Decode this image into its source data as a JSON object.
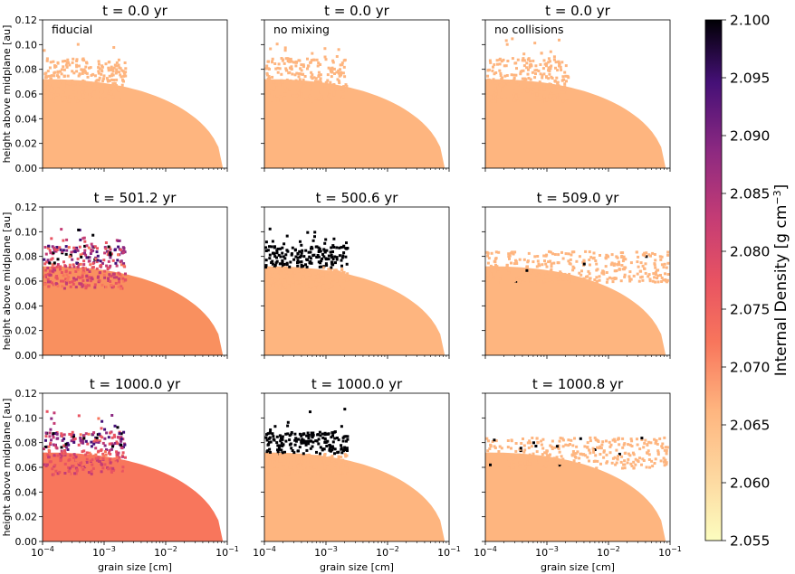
{
  "chart_data": [
    {
      "type": "heatmap",
      "title": "t = 0.0 yr",
      "annotation": "fiducial",
      "row": 0,
      "col": 0,
      "xlabel": "",
      "ylabel": "height above midplane [au]"
    },
    {
      "type": "heatmap",
      "title": "t = 0.0 yr",
      "annotation": "no mixing",
      "row": 0,
      "col": 1,
      "xlabel": "",
      "ylabel": ""
    },
    {
      "type": "heatmap",
      "title": "t = 0.0 yr",
      "annotation": "no collisions",
      "row": 0,
      "col": 2,
      "xlabel": "",
      "ylabel": ""
    },
    {
      "type": "heatmap",
      "title": "t = 501.2 yr",
      "annotation": "",
      "row": 1,
      "col": 0,
      "xlabel": "",
      "ylabel": "height above midplane [au]"
    },
    {
      "type": "heatmap",
      "title": "t = 500.6 yr",
      "annotation": "",
      "row": 1,
      "col": 1,
      "xlabel": "",
      "ylabel": ""
    },
    {
      "type": "heatmap",
      "title": "t = 509.0 yr",
      "annotation": "",
      "row": 1,
      "col": 2,
      "xlabel": "",
      "ylabel": ""
    },
    {
      "type": "heatmap",
      "title": "t = 1000.0 yr",
      "annotation": "",
      "row": 2,
      "col": 0,
      "xlabel": "grain size [cm]",
      "ylabel": "height above midplane [au]"
    },
    {
      "type": "heatmap",
      "title": "t = 1000.0 yr",
      "annotation": "",
      "row": 2,
      "col": 1,
      "xlabel": "grain size [cm]",
      "ylabel": ""
    },
    {
      "type": "heatmap",
      "title": "t = 1000.8 yr",
      "annotation": "",
      "row": 2,
      "col": 2,
      "xlabel": "grain size [cm]",
      "ylabel": ""
    }
  ],
  "axes": {
    "x_scale": "log",
    "x_range": [
      0.0001,
      0.1
    ],
    "x_ticks": [
      {
        "base": "10",
        "exp": "−4"
      },
      {
        "base": "10",
        "exp": "−3"
      },
      {
        "base": "10",
        "exp": "−2"
      },
      {
        "base": "10",
        "exp": "−1"
      }
    ],
    "y_range": [
      0,
      0.12
    ],
    "y_ticks": [
      "0.00",
      "0.02",
      "0.04",
      "0.06",
      "0.08",
      "0.10",
      "0.12"
    ]
  },
  "colorbar": {
    "label": "Internal Density [g cm",
    "label_exp": "−3",
    "label_end": "]",
    "colormap": "magma_r",
    "range": [
      2.055,
      2.1
    ],
    "ticks": [
      "2.055",
      "2.060",
      "2.065",
      "2.070",
      "2.075",
      "2.080",
      "2.085",
      "2.090",
      "2.095",
      "2.100"
    ]
  }
}
